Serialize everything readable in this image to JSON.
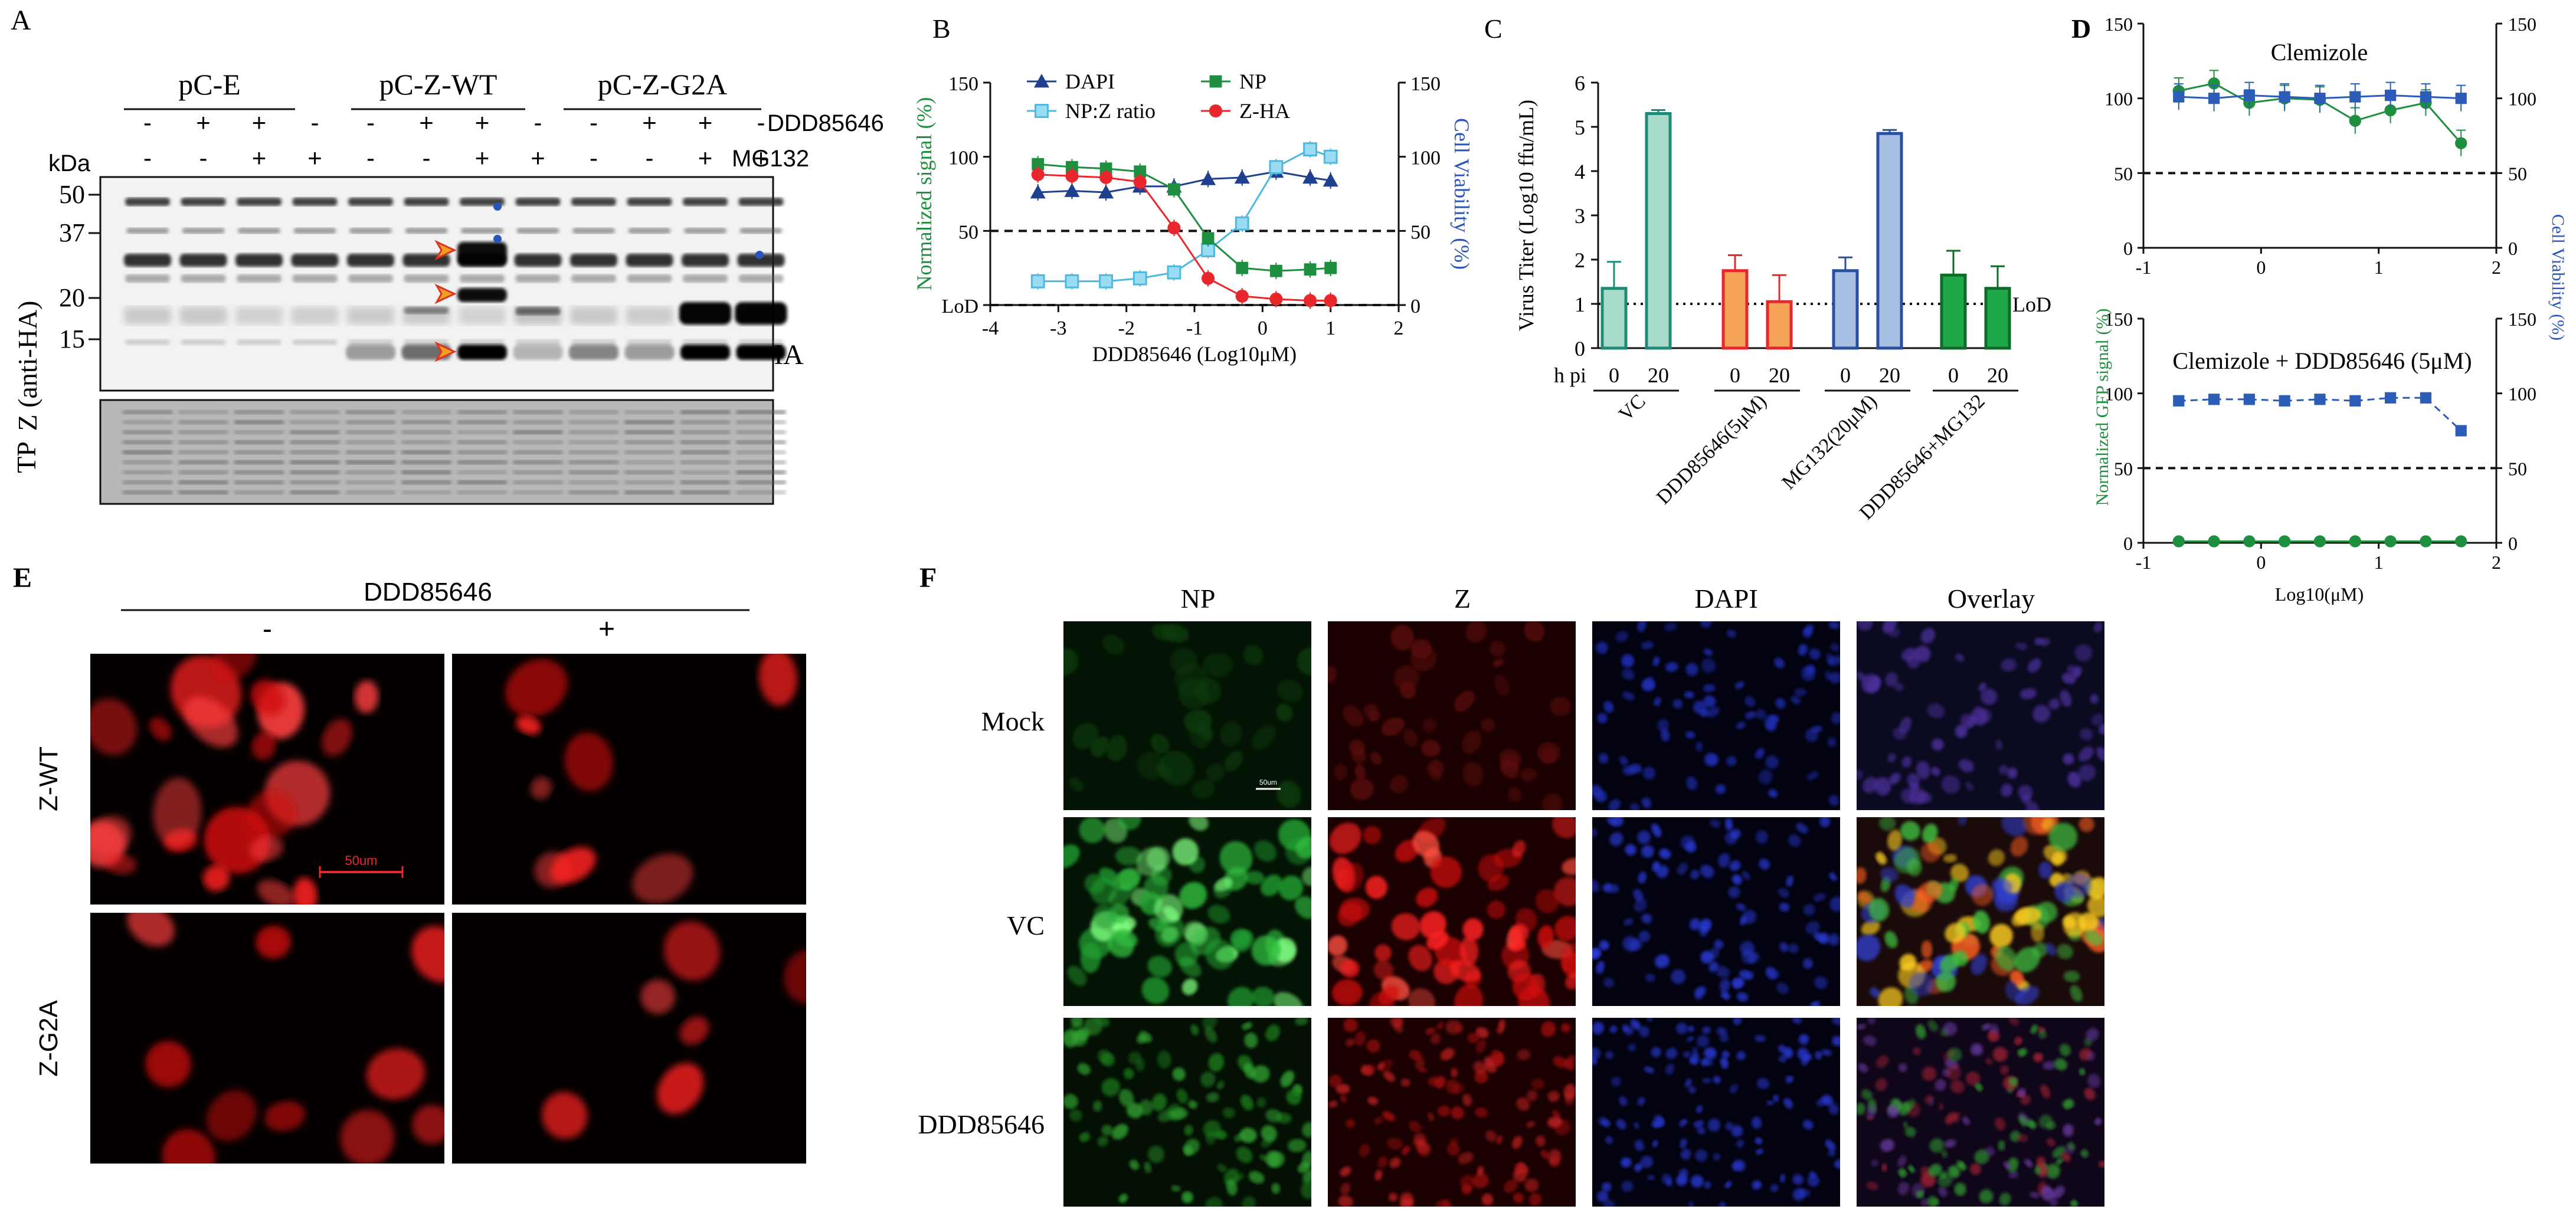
{
  "panels": {
    "A": "A",
    "B": "B",
    "C": "C",
    "D": "D",
    "E": "E",
    "F": "F"
  },
  "blot": {
    "groups": [
      "pC-E",
      "pC-Z-WT",
      "pC-Z-G2A"
    ],
    "treat_labels": [
      "DDD85646",
      "MG132"
    ],
    "ddd_signs": [
      "-",
      "+",
      "+",
      "-",
      "-",
      "+",
      "+",
      "-",
      "-",
      "+",
      "+",
      "-"
    ],
    "mg_signs": [
      "-",
      "-",
      "+",
      "+",
      "-",
      "-",
      "+",
      "+",
      "-",
      "-",
      "+",
      "+"
    ],
    "kda": "kDa",
    "markers": [
      "50",
      "37",
      "20",
      "15"
    ],
    "ylabel": "Z (anti-HA)",
    "band_label": "Z-HA",
    "tp_label": "TP"
  },
  "imaging": {
    "E_title": "DDD85646",
    "E_cols": [
      "-",
      "+"
    ],
    "E_rows": [
      "Z-WT",
      "Z-G2A"
    ],
    "scale": "50um",
    "F_cols": [
      "NP",
      "Z",
      "DAPI",
      "Overlay"
    ],
    "F_rows": [
      "Mock",
      "VC",
      "DDD85646"
    ],
    "F_scale": "50um"
  },
  "chart_data": [
    {
      "type": "line",
      "panel": "B",
      "xlabel": "DDD85646 (Log10μM)",
      "ylabel_left": "Normalized signal (%)",
      "ylabel_right": "Cell Viability (%)",
      "xlim": [
        -4,
        2
      ],
      "ylim": [
        0,
        150
      ],
      "xticks": [
        -4,
        -3,
        -2,
        -1,
        0,
        1,
        2
      ],
      "yticks": [
        0,
        50,
        100,
        150
      ],
      "ytick_labels": [
        "LoD",
        "50",
        "100",
        "150"
      ],
      "right_ticks": [
        "0",
        "50",
        "100",
        "150"
      ],
      "reference_lines": [
        50,
        0
      ],
      "series": [
        {
          "name": "DAPI",
          "color": "#1f3f8f",
          "marker": "triangle",
          "x": [
            -3.3,
            -2.8,
            -2.3,
            -1.8,
            -1.3,
            -0.8,
            -0.3,
            0.2,
            0.7,
            1.0
          ],
          "y": [
            76,
            77,
            76,
            80,
            80,
            85,
            86,
            90,
            86,
            84
          ]
        },
        {
          "name": "NP:Z ratio",
          "color": "#4db8e0",
          "marker": "square-open",
          "x": [
            -3.3,
            -2.8,
            -2.3,
            -1.8,
            -1.3,
            -0.8,
            -0.3,
            0.2,
            0.7,
            1.0
          ],
          "y": [
            16,
            16,
            16,
            18,
            22,
            37,
            55,
            93,
            105,
            100
          ]
        },
        {
          "name": "NP",
          "color": "#1e8f3e",
          "marker": "square",
          "x": [
            -3.3,
            -2.8,
            -2.3,
            -1.8,
            -1.3,
            -0.8,
            -0.3,
            0.2,
            0.7,
            1.0
          ],
          "y": [
            95,
            93,
            92,
            90,
            78,
            45,
            25,
            23,
            24,
            25
          ]
        },
        {
          "name": "Z-HA",
          "color": "#e8262c",
          "marker": "circle",
          "x": [
            -3.3,
            -2.8,
            -2.3,
            -1.8,
            -1.3,
            -0.8,
            -0.3,
            0.2,
            0.7,
            1.0
          ],
          "y": [
            88,
            87,
            86,
            83,
            52,
            18,
            6,
            4,
            3,
            3
          ]
        }
      ]
    },
    {
      "type": "bar",
      "panel": "C",
      "ylabel": "Virus Titer (Log10 ffu/mL)",
      "ylim": [
        0,
        6
      ],
      "yticks": [
        0,
        1,
        2,
        3,
        4,
        5,
        6
      ],
      "hpi_label": "h pi",
      "lod_label": "LoD",
      "lod": 1,
      "groups": [
        "VC",
        "DDD85646(5μM)",
        "MG132(20μM)",
        "DDD85646+MG132"
      ],
      "timepoints": [
        "0",
        "20"
      ],
      "values": [
        [
          1.35,
          5.3
        ],
        [
          1.75,
          1.05
        ],
        [
          1.75,
          4.85
        ],
        [
          1.65,
          1.35
        ]
      ],
      "errors": [
        [
          0.6,
          0.08
        ],
        [
          0.35,
          0.6
        ],
        [
          0.3,
          0.08
        ],
        [
          0.55,
          0.5
        ]
      ],
      "colors": [
        [
          "#a8dcc8",
          "#a8dcc8"
        ],
        [
          "#f6a35a",
          "#f6a35a"
        ],
        [
          "#a7bfe3",
          "#a7bfe3"
        ],
        [
          "#1fa84a",
          "#1fa84a"
        ]
      ],
      "edges": [
        [
          "#1e8a78",
          "#1e8a78"
        ],
        [
          "#e8262c",
          "#e8262c"
        ],
        [
          "#2a4f9f",
          "#2a4f9f"
        ],
        [
          "#0e6b2a",
          "#0e6b2a"
        ]
      ]
    },
    {
      "type": "line",
      "panel": "D-top",
      "title": "Clemizole",
      "xlim": [
        -1,
        2
      ],
      "ylim": [
        0,
        150
      ],
      "xticks": [
        -1,
        0,
        1,
        2
      ],
      "yticks": [
        0,
        50,
        100,
        150
      ],
      "reference_line": 50,
      "series": [
        {
          "name": "GFP",
          "color": "#1e8f3e",
          "marker": "circle",
          "x": [
            -0.7,
            -0.4,
            -0.1,
            0.2,
            0.5,
            0.8,
            1.1,
            1.4,
            1.7
          ],
          "y": [
            105,
            110,
            97,
            100,
            99,
            85,
            92,
            97,
            70
          ]
        },
        {
          "name": "Viability",
          "color": "#2a5cb8",
          "marker": "square",
          "x": [
            -0.7,
            -0.4,
            -0.1,
            0.2,
            0.5,
            0.8,
            1.1,
            1.4,
            1.7
          ],
          "y": [
            101,
            100,
            102,
            101,
            100,
            101,
            102,
            101,
            100
          ]
        }
      ]
    },
    {
      "type": "line",
      "panel": "D-bottom",
      "title": "Clemizole + DDD85646 (5μM)",
      "xlabel": "Log10(μM)",
      "ylabel_left": "Normalized GFP signal (%)",
      "ylabel_right": "Cell Viability (%)",
      "xlim": [
        -1,
        2
      ],
      "ylim": [
        0,
        150
      ],
      "xticks": [
        -1,
        0,
        1,
        2
      ],
      "yticks": [
        0,
        50,
        100,
        150
      ],
      "reference_line": 50,
      "series": [
        {
          "name": "GFP",
          "color": "#1e8f3e",
          "marker": "circle",
          "x": [
            -0.7,
            -0.4,
            -0.1,
            0.2,
            0.5,
            0.8,
            1.1,
            1.4,
            1.7
          ],
          "y": [
            1,
            1,
            1,
            1,
            1,
            1,
            1,
            1,
            1
          ]
        },
        {
          "name": "Viability",
          "color": "#2a5cb8",
          "marker": "square",
          "x": [
            -0.7,
            -0.4,
            -0.1,
            0.2,
            0.5,
            0.8,
            1.1,
            1.4,
            1.7
          ],
          "y": [
            95,
            96,
            96,
            95,
            96,
            95,
            97,
            97,
            75
          ]
        }
      ]
    }
  ]
}
